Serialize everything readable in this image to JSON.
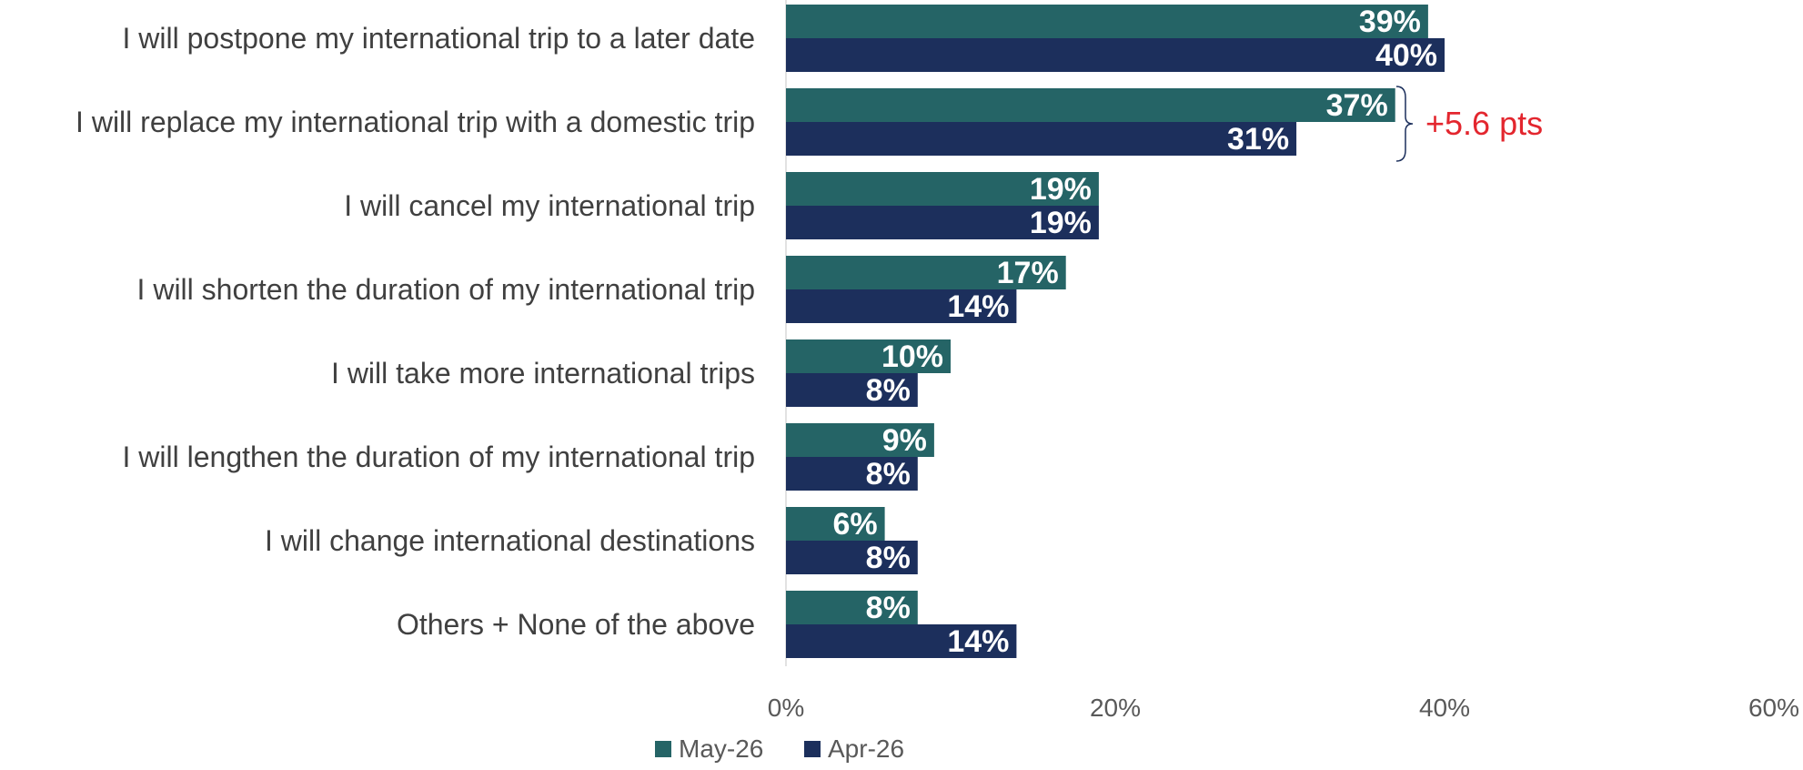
{
  "chart_data": {
    "type": "bar",
    "orientation": "horizontal",
    "title": "",
    "xlabel": "",
    "ylabel": "",
    "categories": [
      "I will postpone my international trip to a later date",
      "I will replace my international trip with a domestic trip",
      "I will cancel my international trip",
      "I will shorten the duration of my international trip",
      "I will take more international trips",
      "I will lengthen the duration of my international trip",
      "I will change international destinations",
      "Others + None of the above"
    ],
    "series": [
      {
        "name": "May-26",
        "color": "#256466",
        "values": [
          39,
          37,
          19,
          17,
          10,
          9,
          6,
          8
        ],
        "labels": [
          "39%",
          "37%",
          "19%",
          "17%",
          "10%",
          "9%",
          "6%",
          "8%"
        ]
      },
      {
        "name": "Apr-26",
        "color": "#1c2f5c",
        "values": [
          40,
          31,
          19,
          14,
          8,
          8,
          8,
          14
        ],
        "labels": [
          "40%",
          "31%",
          "19%",
          "14%",
          "8%",
          "8%",
          "8%",
          "14%"
        ]
      }
    ],
    "xlim": [
      0,
      60
    ],
    "ticks": [
      0,
      20,
      40,
      60
    ],
    "tick_labels": [
      "0%",
      "20%",
      "40%",
      "60%"
    ],
    "grid": false,
    "legend": {
      "position": "bottom-center",
      "entries": [
        "May-26",
        "Apr-26"
      ]
    },
    "annotations": [
      {
        "category_index": 1,
        "text": "+5.6 pts",
        "color": "#e3262e",
        "bracket_color": "#1c2f5c"
      }
    ]
  }
}
